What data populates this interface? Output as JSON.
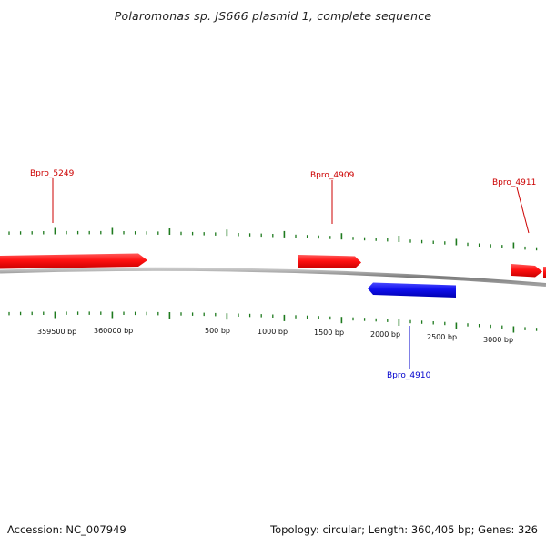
{
  "title": "Polaromonas sp. JS666 plasmid 1, complete sequence",
  "footer": {
    "accession": "Accession: NC_007949",
    "summary": "Topology: circular; Length: 360,405 bp; Genes: 326"
  },
  "colors": {
    "forward_gene": "#ff1a1a",
    "reverse_gene": "#1a1aee",
    "forward_label": "#cc0000",
    "reverse_label": "#0000cc",
    "ticks": "#1e7a1e",
    "backbone": "#8c8c8c"
  },
  "ruler_labels": [
    "359500 bp",
    "360000 bp",
    "500 bp",
    "1000 bp",
    "1500 bp",
    "2000 bp",
    "2500 bp",
    "3000 bp"
  ],
  "genes": [
    {
      "id": "Bpro_5249",
      "strand": "forward"
    },
    {
      "id": "Bpro_4909",
      "strand": "forward"
    },
    {
      "id": "Bpro_4911",
      "strand": "forward"
    },
    {
      "id": "Bpro_4910",
      "strand": "reverse"
    }
  ]
}
